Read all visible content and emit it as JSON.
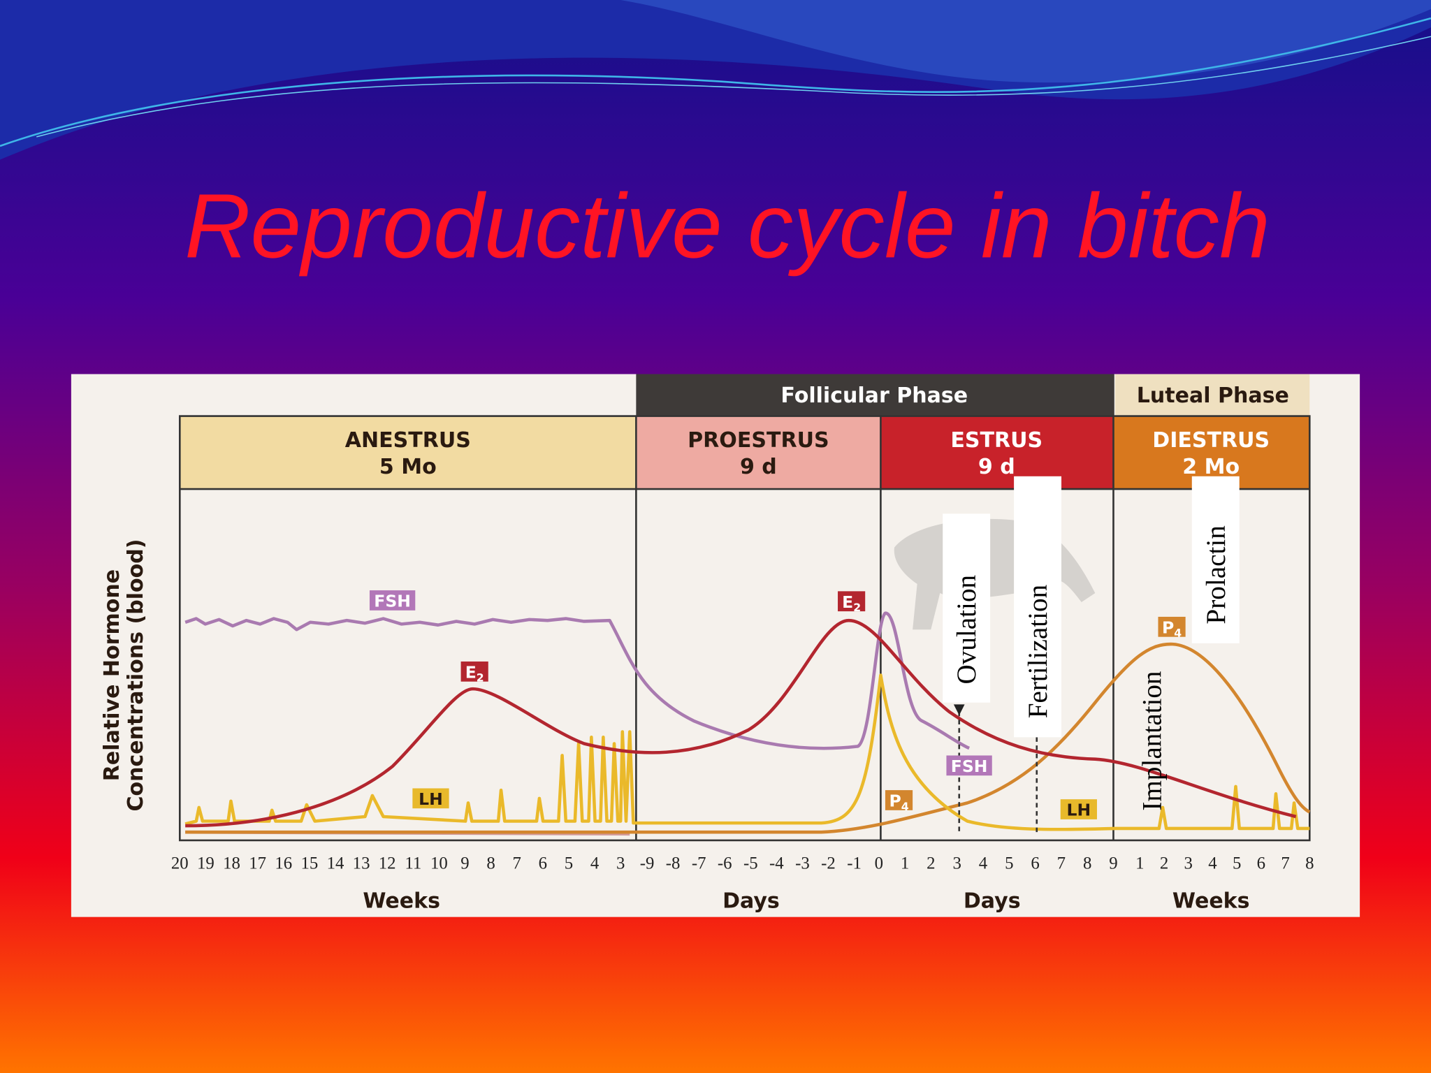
{
  "title": "Reproductive cycle in bitch",
  "phases": [
    "Follicular Phase",
    "Luteal Phase"
  ],
  "stages": [
    {
      "name": "ANESTRUS",
      "duration": "5 Mo"
    },
    {
      "name": "PROESTRUS",
      "duration": "9 d"
    },
    {
      "name": "ESTRUS",
      "duration": "9 d"
    },
    {
      "name": "DIESTRUS",
      "duration": "2 Mo"
    }
  ],
  "y_axis_label": [
    "Relative Hormone",
    "Concentrations (blood)"
  ],
  "axis_groups": [
    {
      "ticks": [
        "20",
        "19",
        "18",
        "17",
        "16",
        "15",
        "14",
        "13",
        "12",
        "11",
        "10",
        "9",
        "8",
        "7",
        "6",
        "5",
        "4",
        "3"
      ],
      "label": "Weeks"
    },
    {
      "ticks": [
        "-9",
        "-8",
        "-7",
        "-6",
        "-5",
        "-4",
        "-3",
        "-2",
        "-1"
      ],
      "label": "Days"
    },
    {
      "ticks": [
        "0",
        "1",
        "2",
        "3",
        "4",
        "5",
        "6",
        "7",
        "8",
        "9"
      ],
      "label": "Days"
    },
    {
      "ticks": [
        "1",
        "2",
        "3",
        "4",
        "5",
        "6",
        "7",
        "8"
      ],
      "label": "Weeks"
    }
  ],
  "hormone_labels": [
    {
      "text": "FSH"
    },
    {
      "text": "E",
      "sub": "2"
    },
    {
      "text": "E",
      "sub": "2"
    },
    {
      "text": "LH"
    },
    {
      "text": "FSH"
    },
    {
      "text": "P",
      "sub": "4"
    },
    {
      "text": "LH"
    },
    {
      "text": "P",
      "sub": "4"
    }
  ],
  "annotations": [
    "Ovulation",
    "Fertilization",
    "Implantation",
    "Prolactin"
  ]
}
